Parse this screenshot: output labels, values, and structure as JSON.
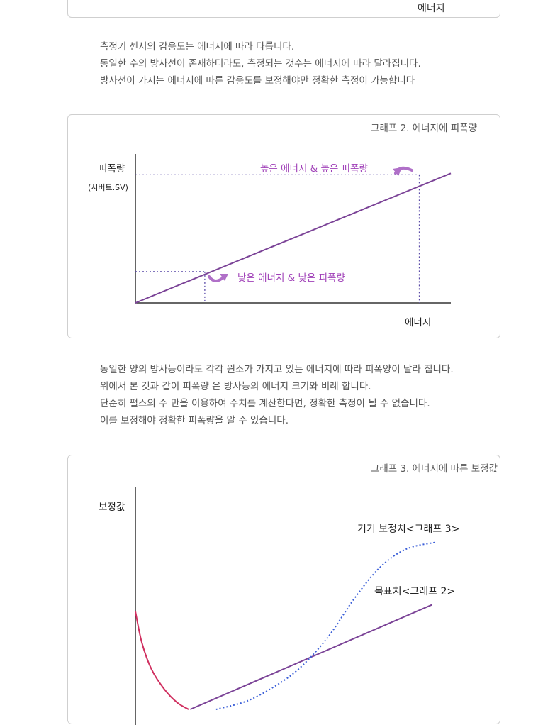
{
  "top_panel": {
    "label": "에너지"
  },
  "paragraph1": [
    "측정기 센서의 감응도는 에너지에 따라  다릅니다.",
    "동일한 수의 방사선이 존재하더라도, 측정되는 갯수는 에너지에 따라 달라집니다.",
    "방사선이 가지는 에너지에 따른 감응도를 보정해야만 정확한 측정이 가능합니다"
  ],
  "paragraph2": [
    "동일한 양의 방사능이라도 각각 원소가 가지고 있는 에너지에 따라 피폭양이 달라 집니다.",
    "위에서 본 것과 같이 피폭량 은 방사능의 에너지 크기와 비례 합니다.",
    "단순히 펄스의 수 만을 이용하여 수치를 계산한다면, 정확한 측정이 될 수 없습니다.",
    "이를 보정해야 정확한 피폭량을 알 수 있습니다."
  ],
  "colors": {
    "purple": "#7b4397",
    "label_purple": "#a040b8",
    "blue": "#3b5fd8",
    "red": "#d03060",
    "axis": "#333333"
  },
  "chart_data": [
    {
      "type": "line",
      "title": "그래프 2. 에너지에 피폭량",
      "ylabel": "피폭량",
      "ylabel_unit": "(시버트.SV)",
      "xlabel": "에너지",
      "xlim": [
        0,
        1
      ],
      "ylim": [
        0,
        1
      ],
      "series": [
        {
          "x": [
            0,
            1
          ],
          "y": [
            0,
            0.87
          ]
        }
      ],
      "reference_points": [
        {
          "x": 0.22,
          "y": 0.21
        },
        {
          "x": 0.9,
          "y": 0.86
        }
      ],
      "annotations": [
        {
          "text": "높은 에너지 & 높은 피폭량",
          "icon": "curved-arrow-icon"
        },
        {
          "text": "낮은 에너지 & 낮은 피폭량",
          "icon": "curved-arrow-icon"
        }
      ]
    },
    {
      "type": "line",
      "title": "그래프 3. 에너지에 따른 보정값",
      "ylabel": "보정값",
      "xlim": [
        0,
        1
      ],
      "ylim": [
        0,
        1
      ],
      "series": [
        {
          "name": "목표치<그래프 2>",
          "x": [
            0.17,
            0.92
          ],
          "y": [
            0.0,
            0.47
          ]
        },
        {
          "name": "기기 보정치<그래프 3>",
          "x": [
            0.25,
            0.35,
            0.45,
            0.52,
            0.6,
            0.68,
            0.76,
            0.84,
            0.93
          ],
          "y": [
            0.0,
            0.04,
            0.12,
            0.2,
            0.33,
            0.5,
            0.64,
            0.72,
            0.75
          ]
        },
        {
          "x": [
            0.0,
            0.02,
            0.05,
            0.09,
            0.13,
            0.165
          ],
          "y": [
            0.44,
            0.3,
            0.18,
            0.09,
            0.03,
            0.0
          ]
        }
      ]
    }
  ]
}
